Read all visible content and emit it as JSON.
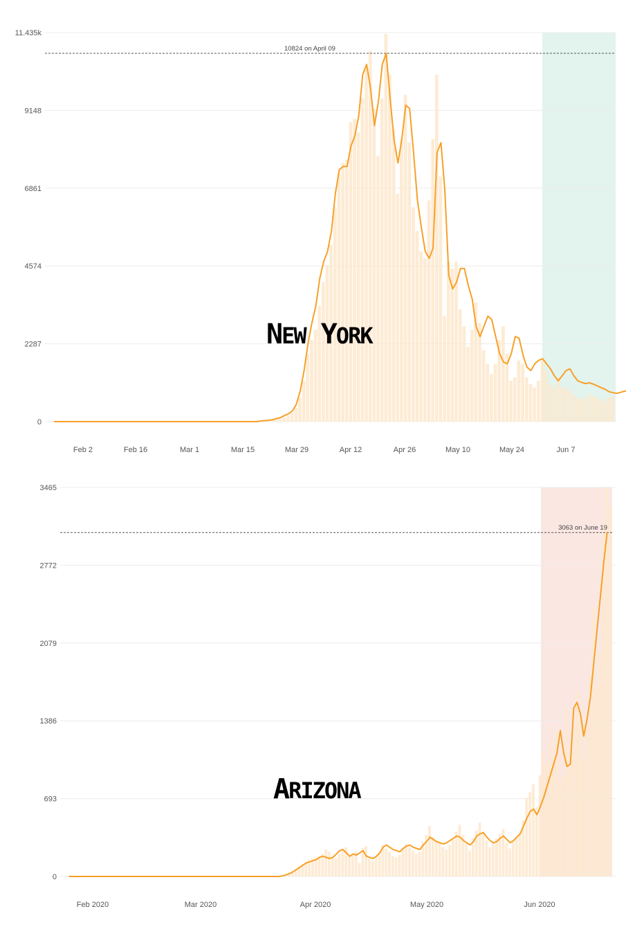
{
  "chart_data": [
    {
      "type": "bar",
      "title": "New York",
      "ylim": [
        0,
        11435
      ],
      "y_ticks": [
        "0",
        "2287",
        "4574",
        "6861",
        "9148",
        "11.435k"
      ],
      "x_ticks": [
        "Feb 2",
        "Feb 16",
        "Mar 1",
        "Mar 15",
        "Mar 29",
        "Apr 12",
        "Apr 26",
        "May 10",
        "May 24",
        "Jun 7"
      ],
      "grid": true,
      "highlight_region": {
        "from": "Jun 1",
        "to": "Jun 20",
        "color": "#e3f3ee"
      },
      "reference_line": {
        "value": 10824,
        "label": "10824 on April 09"
      },
      "bar_color": "#fde7cd",
      "line_color": "#f7a027",
      "series": [
        {
          "kind": "bars",
          "dates_start": "Jan 25",
          "values": [
            0,
            0,
            0,
            0,
            0,
            0,
            0,
            0,
            0,
            0,
            0,
            0,
            0,
            0,
            0,
            0,
            0,
            0,
            0,
            0,
            0,
            0,
            0,
            0,
            0,
            0,
            0,
            0,
            0,
            0,
            0,
            0,
            0,
            0,
            0,
            0,
            0,
            0,
            0,
            0,
            0,
            0,
            0,
            0,
            0,
            0,
            0,
            0,
            0,
            0,
            0,
            0,
            0,
            10,
            20,
            30,
            40,
            60,
            90,
            130,
            180,
            250,
            400,
            700,
            1200,
            2000,
            2400,
            2700,
            3400,
            4100,
            4600,
            5200,
            6300,
            7300,
            7600,
            7700,
            8800,
            8900,
            8500,
            9500,
            10400,
            10900,
            9200,
            7800,
            9500,
            11400,
            10200,
            8600,
            6700,
            8300,
            9600,
            8200,
            6300,
            5600,
            5000,
            4800,
            6500,
            8300,
            10200,
            7200,
            3100,
            4700,
            4500,
            4700,
            3300,
            2800,
            2200,
            2700,
            3500,
            2900,
            2100,
            1700,
            1400,
            1700,
            2400,
            2800,
            2000,
            1200,
            1300,
            1800,
            1700,
            1300,
            1100,
            1000,
            1200,
            1800,
            1500,
            1100,
            1000,
            1300,
            1000,
            1000,
            900,
            800,
            700,
            650,
            700,
            800,
            750,
            700,
            650,
            600,
            700,
            750
          ]
        },
        {
          "kind": "line",
          "label": "7-day average",
          "values": [
            0,
            0,
            0,
            0,
            0,
            0,
            0,
            0,
            0,
            0,
            0,
            0,
            0,
            0,
            0,
            0,
            0,
            0,
            0,
            0,
            0,
            0,
            0,
            0,
            0,
            0,
            0,
            0,
            0,
            0,
            0,
            0,
            0,
            0,
            0,
            0,
            0,
            0,
            0,
            0,
            0,
            0,
            0,
            0,
            0,
            0,
            0,
            0,
            0,
            0,
            0,
            0,
            0,
            20,
            30,
            40,
            60,
            90,
            120,
            180,
            230,
            310,
            500,
            900,
            1500,
            2300,
            2900,
            3400,
            4200,
            4700,
            5000,
            5600,
            6700,
            7400,
            7500,
            7500,
            8100,
            8400,
            9000,
            10200,
            10500,
            9800,
            8700,
            9400,
            10500,
            10824,
            9500,
            8300,
            7600,
            8300,
            9300,
            9200,
            7900,
            6500,
            5700,
            5000,
            4800,
            5100,
            7900,
            8200,
            6800,
            4300,
            3900,
            4100,
            4500,
            4500,
            4000,
            3600,
            2800,
            2500,
            2800,
            3100,
            3000,
            2500,
            2000,
            1750,
            1700,
            2000,
            2500,
            2450,
            1950,
            1600,
            1500,
            1700,
            1800,
            1850,
            1700,
            1550,
            1350,
            1200,
            1350,
            1500,
            1550,
            1350,
            1200,
            1150,
            1120,
            1140,
            1100,
            1050,
            1000,
            950,
            880,
            850,
            830,
            860,
            900,
            880,
            820,
            750,
            700,
            740,
            800
          ]
        }
      ]
    },
    {
      "type": "bar",
      "title": "Arizona",
      "ylim": [
        0,
        3465
      ],
      "y_ticks": [
        "0",
        "693",
        "1386",
        "2079",
        "2772",
        "3465"
      ],
      "x_ticks": [
        "Feb 2020",
        "Mar 2020",
        "Apr 2020",
        "May 2020",
        "Jun 2020"
      ],
      "grid": true,
      "highlight_region": {
        "from": "Jun 1",
        "to": "Jun 20",
        "color": "#fbe7e2"
      },
      "reference_line": {
        "value": 3063,
        "label": "3063 on June 19"
      },
      "bar_color": "#fde7cd",
      "line_color": "#f7a027",
      "series": [
        {
          "kind": "bars",
          "dates_start": "Jan 25",
          "values": [
            0,
            0,
            0,
            0,
            0,
            0,
            0,
            0,
            0,
            0,
            0,
            0,
            0,
            0,
            0,
            0,
            0,
            0,
            0,
            0,
            0,
            0,
            0,
            0,
            0,
            0,
            0,
            0,
            0,
            0,
            0,
            0,
            0,
            0,
            0,
            0,
            0,
            0,
            0,
            0,
            0,
            0,
            0,
            0,
            0,
            0,
            0,
            0,
            0,
            0,
            0,
            0,
            0,
            0,
            0,
            0,
            0,
            0,
            0,
            0,
            0,
            0,
            0,
            0,
            10,
            20,
            30,
            50,
            70,
            90,
            110,
            130,
            150,
            160,
            170,
            180,
            200,
            240,
            220,
            170,
            160,
            200,
            240,
            260,
            180,
            200,
            220,
            120,
            250,
            270,
            160,
            140,
            180,
            210,
            280,
            250,
            220,
            180,
            170,
            190,
            250,
            290,
            260,
            230,
            200,
            220,
            310,
            370,
            450,
            350,
            320,
            300,
            260,
            240,
            280,
            330,
            400,
            460,
            370,
            300,
            230,
            340,
            410,
            480,
            400,
            320,
            260,
            300,
            340,
            380,
            420,
            300,
            250,
            320,
            350,
            400,
            500,
            700,
            750,
            820,
            620,
            900,
            1100,
            1000,
            1200,
            1050,
            1300,
            850,
            900,
            1500,
            1100,
            1300,
            1650,
            1400,
            1050,
            1350,
            1800,
            2400,
            1700,
            2000,
            3063,
            3465,
            3300
          ]
        },
        {
          "kind": "line",
          "label": "7-day average",
          "values": [
            0,
            0,
            0,
            0,
            0,
            0,
            0,
            0,
            0,
            0,
            0,
            0,
            0,
            0,
            0,
            0,
            0,
            0,
            0,
            0,
            0,
            0,
            0,
            0,
            0,
            0,
            0,
            0,
            0,
            0,
            0,
            0,
            0,
            0,
            0,
            0,
            0,
            0,
            0,
            0,
            0,
            0,
            0,
            0,
            0,
            0,
            0,
            0,
            0,
            0,
            0,
            0,
            0,
            0,
            0,
            0,
            0,
            0,
            0,
            0,
            0,
            0,
            0,
            0,
            5,
            15,
            25,
            40,
            60,
            80,
            100,
            120,
            130,
            140,
            150,
            170,
            180,
            170,
            160,
            170,
            200,
            230,
            240,
            210,
            180,
            200,
            190,
            210,
            230,
            180,
            170,
            160,
            180,
            210,
            260,
            280,
            260,
            240,
            230,
            220,
            250,
            270,
            280,
            260,
            250,
            240,
            280,
            310,
            350,
            330,
            310,
            300,
            290,
            300,
            320,
            340,
            360,
            350,
            320,
            300,
            280,
            310,
            360,
            380,
            390,
            350,
            320,
            300,
            310,
            340,
            360,
            330,
            300,
            320,
            350,
            380,
            450,
            520,
            580,
            600,
            550,
            620,
            700,
            800,
            900,
            1000,
            1100,
            1300,
            1100,
            980,
            1000,
            1500,
            1550,
            1450,
            1250,
            1400,
            1600,
            1900,
            2200,
            2500,
            2800,
            3063
          ]
        }
      ]
    }
  ]
}
